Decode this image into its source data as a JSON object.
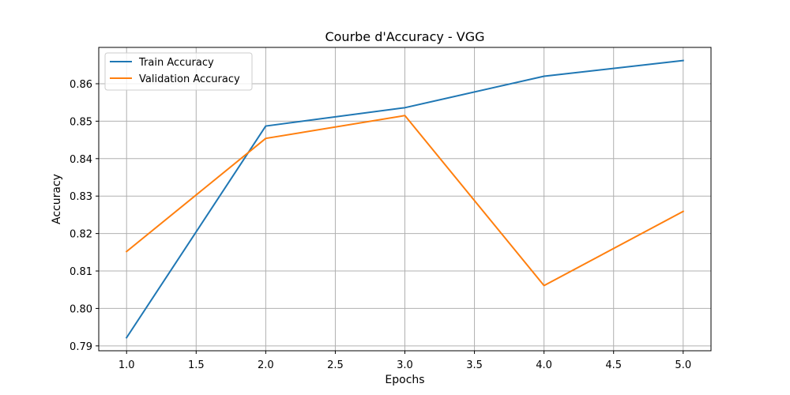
{
  "chart_data": {
    "type": "line",
    "title": "Courbe d'Accuracy - VGG",
    "xlabel": "Epochs",
    "ylabel": "Accuracy",
    "x": [
      1.0,
      2.0,
      3.0,
      4.0,
      5.0
    ],
    "xlim": [
      0.8,
      5.2
    ],
    "ylim": [
      0.7887,
      0.8697
    ],
    "xticks": [
      1.0,
      1.5,
      2.0,
      2.5,
      3.0,
      3.5,
      4.0,
      4.5,
      5.0
    ],
    "xtick_labels": [
      "1.0",
      "1.5",
      "2.0",
      "2.5",
      "3.0",
      "3.5",
      "4.0",
      "4.5",
      "5.0"
    ],
    "yticks": [
      0.79,
      0.8,
      0.81,
      0.82,
      0.83,
      0.84,
      0.85,
      0.86
    ],
    "ytick_labels": [
      "0.79",
      "0.80",
      "0.81",
      "0.82",
      "0.83",
      "0.84",
      "0.85",
      "0.86"
    ],
    "grid": true,
    "legend_position": "top-left",
    "series": [
      {
        "name": "Train Accuracy",
        "color": "#1f77b4",
        "values": [
          0.7922,
          0.8487,
          0.8536,
          0.862,
          0.8662
        ]
      },
      {
        "name": "Validation Accuracy",
        "color": "#ff7f0e",
        "values": [
          0.8152,
          0.8454,
          0.8515,
          0.8061,
          0.8259
        ]
      }
    ]
  }
}
